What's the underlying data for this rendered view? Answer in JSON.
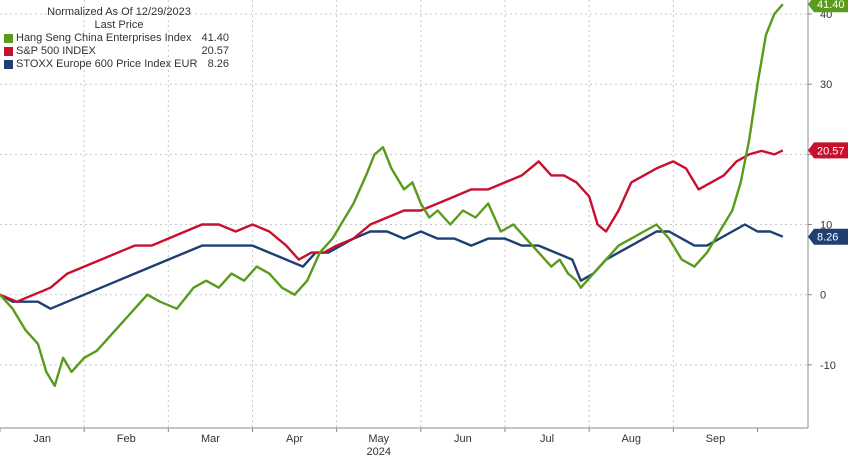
{
  "chart_data": {
    "type": "line",
    "title": "Normalized As Of 12/29/2023",
    "subtitle": "Last Price",
    "xlabel": "2024",
    "ylabel": "",
    "x_tick_labels": [
      "Jan",
      "Feb",
      "Mar",
      "Apr",
      "May",
      "Jun",
      "Jul",
      "Aug",
      "Sep"
    ],
    "x_range": [
      0,
      9.6
    ],
    "ylim": [
      -19,
      42
    ],
    "y_ticks": [
      -10,
      0,
      10,
      20,
      30,
      40
    ],
    "y_tick_labels": [
      "-10",
      "0",
      "10",
      "20",
      "30",
      "40"
    ],
    "grid": "vertical dashed at month boundaries, horizontal dashed at y ticks",
    "legend_position": "top-left",
    "series": [
      {
        "name": "Hang Seng China Enterprises Index",
        "last_value_label": "41.40",
        "color": "#5a9a1c",
        "points": [
          [
            0,
            0
          ],
          [
            0.15,
            -2
          ],
          [
            0.3,
            -5
          ],
          [
            0.45,
            -7
          ],
          [
            0.55,
            -11
          ],
          [
            0.65,
            -13
          ],
          [
            0.75,
            -9
          ],
          [
            0.85,
            -11
          ],
          [
            1.0,
            -9
          ],
          [
            1.15,
            -8
          ],
          [
            1.3,
            -6
          ],
          [
            1.45,
            -4
          ],
          [
            1.6,
            -2
          ],
          [
            1.75,
            0
          ],
          [
            1.9,
            -1
          ],
          [
            2.1,
            -2
          ],
          [
            2.3,
            1
          ],
          [
            2.45,
            2
          ],
          [
            2.6,
            1
          ],
          [
            2.75,
            3
          ],
          [
            2.9,
            2
          ],
          [
            3.05,
            4
          ],
          [
            3.2,
            3
          ],
          [
            3.35,
            1
          ],
          [
            3.5,
            0
          ],
          [
            3.65,
            2
          ],
          [
            3.8,
            6
          ],
          [
            3.95,
            8
          ],
          [
            4.05,
            10
          ],
          [
            4.2,
            13
          ],
          [
            4.35,
            17
          ],
          [
            4.45,
            20
          ],
          [
            4.55,
            21
          ],
          [
            4.65,
            18
          ],
          [
            4.8,
            15
          ],
          [
            4.9,
            16
          ],
          [
            5.0,
            13
          ],
          [
            5.1,
            11
          ],
          [
            5.2,
            12
          ],
          [
            5.35,
            10
          ],
          [
            5.5,
            12
          ],
          [
            5.65,
            11
          ],
          [
            5.8,
            13
          ],
          [
            5.95,
            9
          ],
          [
            6.1,
            10
          ],
          [
            6.25,
            8
          ],
          [
            6.4,
            6
          ],
          [
            6.55,
            4
          ],
          [
            6.65,
            5
          ],
          [
            6.75,
            3
          ],
          [
            6.85,
            2
          ],
          [
            6.9,
            1
          ],
          [
            7.05,
            3
          ],
          [
            7.2,
            5
          ],
          [
            7.35,
            7
          ],
          [
            7.5,
            8
          ],
          [
            7.65,
            9
          ],
          [
            7.8,
            10
          ],
          [
            7.95,
            8
          ],
          [
            8.1,
            5
          ],
          [
            8.25,
            4
          ],
          [
            8.4,
            6
          ],
          [
            8.55,
            9
          ],
          [
            8.7,
            12
          ],
          [
            8.8,
            16
          ],
          [
            8.9,
            22
          ],
          [
            9.0,
            30
          ],
          [
            9.1,
            37
          ],
          [
            9.2,
            40
          ],
          [
            9.3,
            41.4
          ]
        ]
      },
      {
        "name": "S&P 500 INDEX",
        "last_value_label": "20.57",
        "color": "#c8102e",
        "points": [
          [
            0,
            0
          ],
          [
            0.2,
            -1
          ],
          [
            0.4,
            0
          ],
          [
            0.6,
            1
          ],
          [
            0.8,
            3
          ],
          [
            1.0,
            4
          ],
          [
            1.2,
            5
          ],
          [
            1.4,
            6
          ],
          [
            1.6,
            7
          ],
          [
            1.8,
            7
          ],
          [
            2.0,
            8
          ],
          [
            2.2,
            9
          ],
          [
            2.4,
            10
          ],
          [
            2.6,
            10
          ],
          [
            2.8,
            9
          ],
          [
            3.0,
            10
          ],
          [
            3.2,
            9
          ],
          [
            3.4,
            7
          ],
          [
            3.55,
            5
          ],
          [
            3.7,
            6
          ],
          [
            3.85,
            6
          ],
          [
            4.0,
            7
          ],
          [
            4.2,
            8
          ],
          [
            4.4,
            10
          ],
          [
            4.6,
            11
          ],
          [
            4.8,
            12
          ],
          [
            5.0,
            12
          ],
          [
            5.2,
            13
          ],
          [
            5.4,
            14
          ],
          [
            5.6,
            15
          ],
          [
            5.8,
            15
          ],
          [
            6.0,
            16
          ],
          [
            6.2,
            17
          ],
          [
            6.4,
            19
          ],
          [
            6.55,
            17
          ],
          [
            6.7,
            17
          ],
          [
            6.85,
            16
          ],
          [
            7.0,
            14
          ],
          [
            7.1,
            10
          ],
          [
            7.2,
            9
          ],
          [
            7.35,
            12
          ],
          [
            7.5,
            16
          ],
          [
            7.65,
            17
          ],
          [
            7.8,
            18
          ],
          [
            8.0,
            19
          ],
          [
            8.15,
            18
          ],
          [
            8.3,
            15
          ],
          [
            8.45,
            16
          ],
          [
            8.6,
            17
          ],
          [
            8.75,
            19
          ],
          [
            8.9,
            20
          ],
          [
            9.05,
            20.5
          ],
          [
            9.2,
            20
          ],
          [
            9.3,
            20.57
          ]
        ]
      },
      {
        "name": "STOXX Europe 600 Price Index EUR",
        "last_value_label": "8.26",
        "color": "#1f3f73",
        "points": [
          [
            0,
            0
          ],
          [
            0.15,
            -1
          ],
          [
            0.3,
            -1
          ],
          [
            0.45,
            -1
          ],
          [
            0.6,
            -2
          ],
          [
            0.8,
            -1
          ],
          [
            1.0,
            0
          ],
          [
            1.2,
            1
          ],
          [
            1.4,
            2
          ],
          [
            1.6,
            3
          ],
          [
            1.8,
            4
          ],
          [
            2.0,
            5
          ],
          [
            2.2,
            6
          ],
          [
            2.4,
            7
          ],
          [
            2.6,
            7
          ],
          [
            2.8,
            7
          ],
          [
            3.0,
            7
          ],
          [
            3.2,
            6
          ],
          [
            3.4,
            5
          ],
          [
            3.6,
            4
          ],
          [
            3.75,
            6
          ],
          [
            3.9,
            6
          ],
          [
            4.05,
            7
          ],
          [
            4.2,
            8
          ],
          [
            4.4,
            9
          ],
          [
            4.6,
            9
          ],
          [
            4.8,
            8
          ],
          [
            5.0,
            9
          ],
          [
            5.2,
            8
          ],
          [
            5.4,
            8
          ],
          [
            5.6,
            7
          ],
          [
            5.8,
            8
          ],
          [
            6.0,
            8
          ],
          [
            6.2,
            7
          ],
          [
            6.4,
            7
          ],
          [
            6.6,
            6
          ],
          [
            6.8,
            5
          ],
          [
            6.9,
            2
          ],
          [
            7.05,
            3
          ],
          [
            7.2,
            5
          ],
          [
            7.35,
            6
          ],
          [
            7.5,
            7
          ],
          [
            7.65,
            8
          ],
          [
            7.8,
            9
          ],
          [
            7.95,
            9
          ],
          [
            8.1,
            8
          ],
          [
            8.25,
            7
          ],
          [
            8.4,
            7
          ],
          [
            8.55,
            8
          ],
          [
            8.7,
            9
          ],
          [
            8.85,
            10
          ],
          [
            9.0,
            9
          ],
          [
            9.15,
            9
          ],
          [
            9.3,
            8.26
          ]
        ]
      }
    ]
  }
}
